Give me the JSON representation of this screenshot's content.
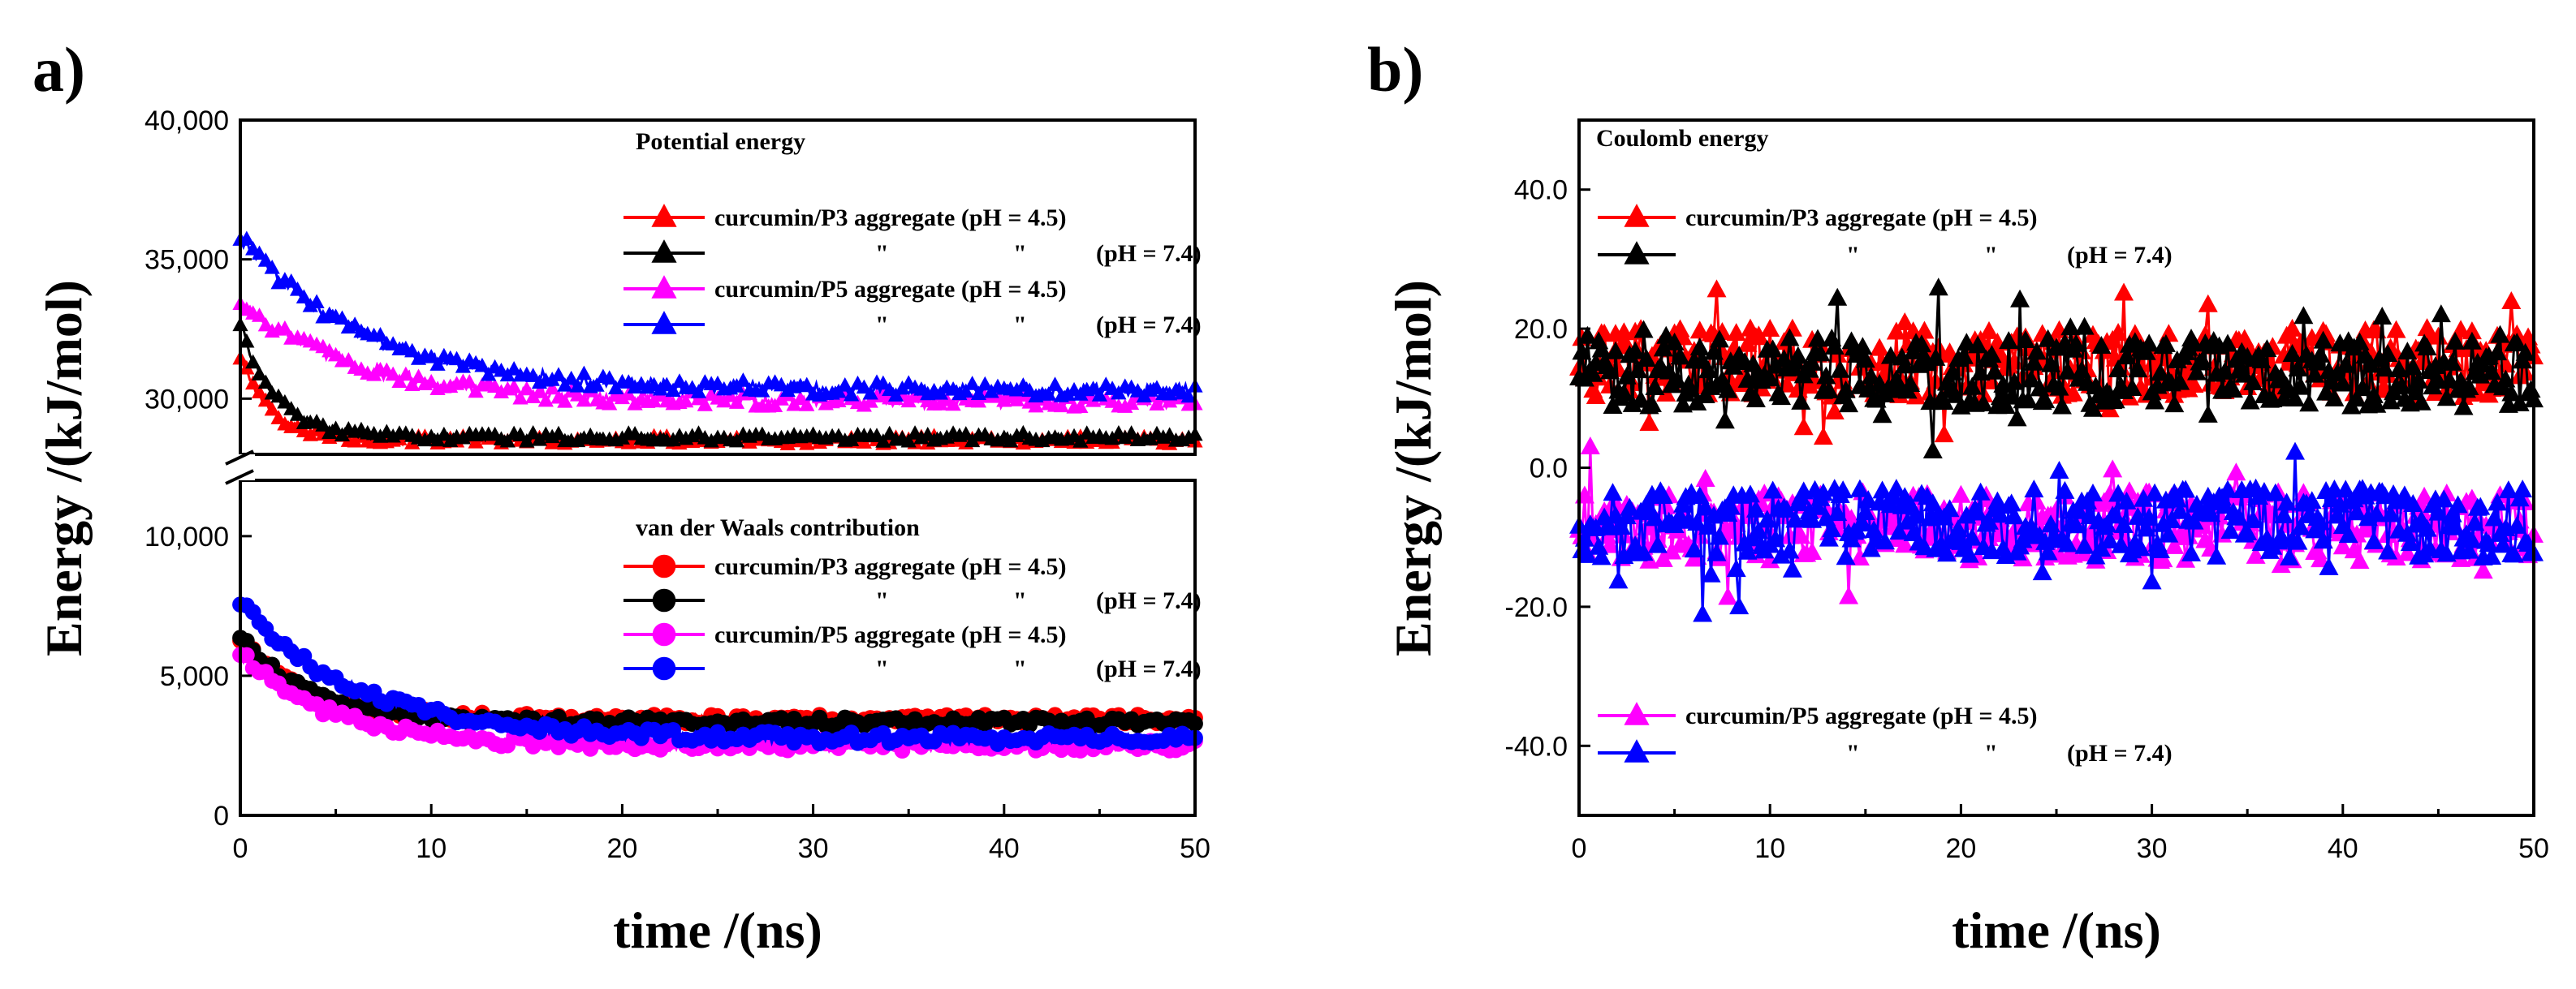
{
  "chart_data": [
    {
      "panel": "a)",
      "type": "line",
      "xlabel": "time /(ns)",
      "ylabel": "Energy /(kJ/mol)",
      "xlim": [
        0,
        50
      ],
      "x_ticks": [
        "0",
        "10",
        "20",
        "30",
        "40",
        "50"
      ],
      "broken_axis": true,
      "top_section": {
        "title": "Potential energy",
        "ylim": [
          28000,
          40000
        ],
        "y_ticks": [
          {
            "value": 30000,
            "label": "30,000"
          },
          {
            "value": 35000,
            "label": "35,000"
          },
          {
            "value": 40000,
            "label": "40,000"
          }
        ],
        "marker": "triangle",
        "series": [
          {
            "name": "curcumin/P3 aggregate (pH = 4.5)",
            "quote_left": "",
            "quote_right": "",
            "ph": "",
            "color": "#ff0000",
            "start": 31500,
            "plateau": 28500,
            "tau": 1.6,
            "noise": 150
          },
          {
            "name": "",
            "quote_left": "\"",
            "quote_right": "\"",
            "ph": "(pH = 7.4)",
            "color": "#000000",
            "start": 32700,
            "plateau": 28600,
            "tau": 1.8,
            "noise": 150
          },
          {
            "name": "curcumin/P5 aggregate (pH = 4.5)",
            "quote_left": "",
            "quote_right": "",
            "ph": "",
            "color": "#ff00ff",
            "start": 33500,
            "plateau": 29900,
            "tau": 6.0,
            "noise": 250
          },
          {
            "name": "",
            "quote_left": "\"",
            "quote_right": "\"",
            "ph": "(pH = 7.4)",
            "color": "#0000ff",
            "start": 35800,
            "plateau": 30300,
            "tau": 6.5,
            "noise": 250
          }
        ]
      },
      "bottom_section": {
        "title": "van der Waals contribution",
        "ylim": [
          0,
          12000
        ],
        "y_ticks": [
          {
            "value": 0,
            "label": "0"
          },
          {
            "value": 5000,
            "label": "5,000"
          },
          {
            "value": 10000,
            "label": "10,000"
          }
        ],
        "marker": "circle",
        "series": [
          {
            "name": "curcumin/P3 aggregate (pH = 4.5)",
            "quote_left": "",
            "quote_right": "",
            "ph": "",
            "color": "#ff0000",
            "start": 6300,
            "plateau": 3450,
            "tau": 3.5,
            "noise": 150
          },
          {
            "name": "",
            "quote_left": "\"",
            "quote_right": "\"",
            "ph": "(pH = 7.4)",
            "color": "#000000",
            "start": 6400,
            "plateau": 3350,
            "tau": 3.5,
            "noise": 150
          },
          {
            "name": "curcumin/P5 aggregate (pH = 4.5)",
            "quote_left": "",
            "quote_right": "",
            "ph": "",
            "color": "#ff00ff",
            "start": 5800,
            "plateau": 2500,
            "tau": 4.5,
            "noise": 200
          },
          {
            "name": "",
            "quote_left": "\"",
            "quote_right": "\"",
            "ph": "(pH = 7.4)",
            "color": "#0000ff",
            "start": 7600,
            "plateau": 2750,
            "tau": 6.0,
            "noise": 200
          }
        ]
      }
    },
    {
      "panel": "b)",
      "type": "line",
      "title": "Coulomb energy",
      "xlabel": "time /(ns)",
      "ylabel": "Energy /(kJ/mol)",
      "xlim": [
        0,
        50
      ],
      "ylim": [
        -50,
        50
      ],
      "x_ticks": [
        "0",
        "10",
        "20",
        "30",
        "40",
        "50"
      ],
      "y_ticks": [
        {
          "value": 40,
          "label": "40.0"
        },
        {
          "value": 20,
          "label": "20.0"
        },
        {
          "value": 0,
          "label": "0.0"
        },
        {
          "value": -20,
          "label": "-20.0"
        },
        {
          "value": -40,
          "label": "-40.0"
        }
      ],
      "marker": "triangle",
      "series": [
        {
          "name": "curcumin/P3 aggregate (pH = 4.5)",
          "quote_left": "",
          "quote_right": "",
          "ph": "",
          "color": "#ff0000",
          "mean": 15,
          "noise": 5
        },
        {
          "name": "",
          "quote_left": "\"",
          "quote_right": "\"",
          "ph": "(pH = 7.4)",
          "color": "#000000",
          "mean": 13.5,
          "noise": 5
        },
        {
          "name": "curcumin/P5 aggregate (pH = 4.5)",
          "quote_left": "",
          "quote_right": "",
          "ph": "",
          "color": "#ff00ff",
          "mean": -8.5,
          "noise": 5
        },
        {
          "name": "",
          "quote_left": "\"",
          "quote_right": "\"",
          "ph": "(pH = 7.4)",
          "color": "#0000ff",
          "mean": -8,
          "noise": 5
        }
      ]
    }
  ]
}
